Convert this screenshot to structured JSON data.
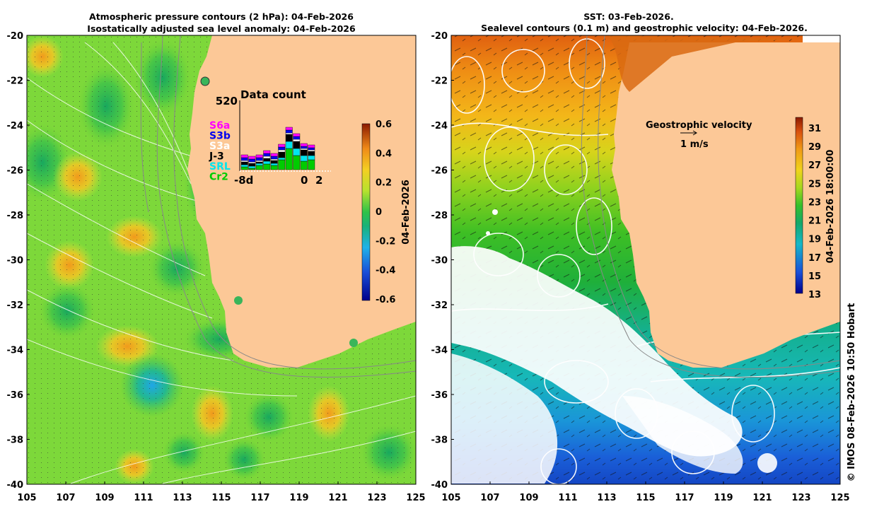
{
  "left_panel": {
    "title_line1": "Atmospheric pressure contours (2 hPa): 04-Feb-2026",
    "title_line2": "Isostatically adjusted sea level anomaly: 04-Feb-2026",
    "colorbar_label": "04-Feb-2026",
    "colorbar_ticks": [
      "0.6",
      "0.4",
      "0.2",
      "0",
      "-0.2",
      "-0.4",
      "-0.6"
    ],
    "colorbar_range": [
      -0.6,
      0.6
    ],
    "inset": {
      "title": "Data count",
      "max_label": "520",
      "x_start_label": "-8d",
      "x_zero_label": "0",
      "x_end_label": "2",
      "missions": [
        {
          "name": "S6a",
          "color": "#ff00ff"
        },
        {
          "name": "S3b",
          "color": "#0000ee"
        },
        {
          "name": "S3a",
          "color": "#ffffff"
        },
        {
          "name": "J-3",
          "color": "#000000"
        },
        {
          "name": "SRL",
          "color": "#00e5ee"
        },
        {
          "name": "Cr2",
          "color": "#00cc00"
        }
      ]
    }
  },
  "right_panel": {
    "title_line1": "SST: 03-Feb-2026.",
    "title_line2": "Sealevel contours (0.1 m) and geostrophic velocity: 04-Feb-2026.",
    "legend_title": "Geostrophic velocity",
    "legend_scale": "1 m/s",
    "colorbar_label": "04-Feb-2026 18:00:00",
    "colorbar_ticks": [
      "31",
      "29",
      "27",
      "25",
      "23",
      "21",
      "19",
      "17",
      "15",
      "13"
    ],
    "colorbar_range": [
      13,
      32
    ]
  },
  "axes": {
    "lat_ticks": [
      "-20",
      "-22",
      "-24",
      "-26",
      "-28",
      "-30",
      "-32",
      "-34",
      "-36",
      "-38",
      "-40"
    ],
    "lon_ticks": [
      "105",
      "107",
      "109",
      "111",
      "113",
      "115",
      "117",
      "119",
      "121",
      "123",
      "125"
    ]
  },
  "credit": "© IMOS 08-Feb-2026 10:50 Hobart",
  "colors": {
    "land": "#fcc897",
    "cloud": "#ffffff",
    "contour_white": "#ffffff",
    "contour_grey": "#999999"
  }
}
